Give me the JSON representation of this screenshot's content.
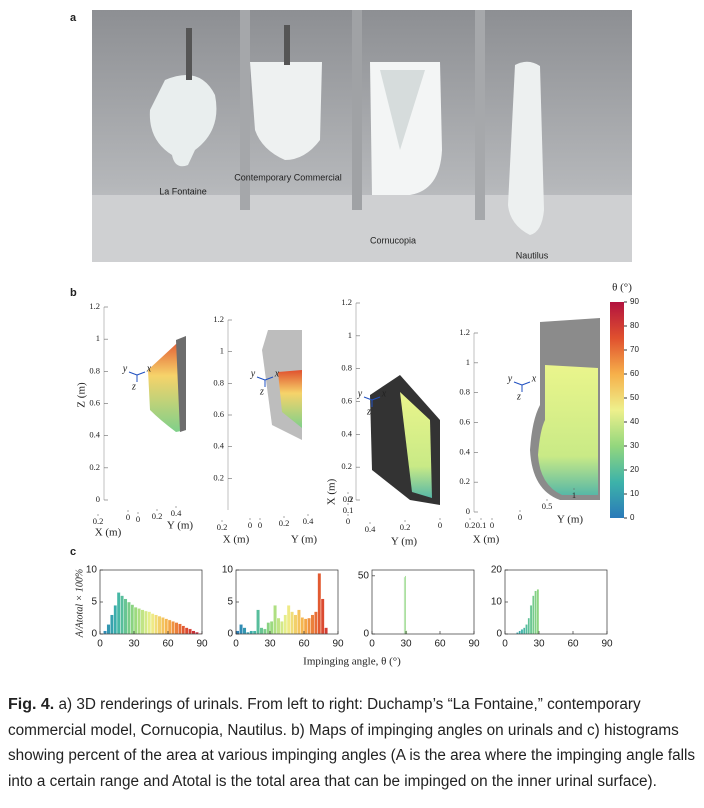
{
  "figure": {
    "panel_a": {
      "label": "a",
      "labels": [
        "La Fontaine",
        "Contemporary Commercial",
        "Cornucopia",
        "Nautilus"
      ]
    },
    "panel_b": {
      "label": "b",
      "axis_labels": {
        "x": "X (m)",
        "y": "Y (m)",
        "z": "Z (m)"
      },
      "frame_labels": [
        "y",
        "x",
        "z"
      ],
      "plots": [
        {
          "zlim": [
            0,
            1.2
          ],
          "zticks": [
            0,
            0.2,
            0.4,
            0.6,
            0.8,
            1,
            1.2
          ],
          "xlim": [
            0,
            0.2
          ],
          "xticks": [
            0,
            0.2
          ],
          "ylim": [
            0,
            0.4
          ],
          "yticks": [
            0,
            0.2,
            0.4
          ]
        },
        {
          "zlim": [
            0,
            1.2
          ],
          "zticks": [
            0.2,
            0.4,
            0.6,
            0.8,
            1,
            1.2
          ],
          "xlim": [
            0,
            0.2
          ],
          "xticks": [
            0,
            0.2
          ],
          "ylim": [
            0,
            0.4
          ],
          "yticks": [
            0,
            0.2,
            0.4
          ]
        },
        {
          "zlim": [
            0,
            1.2
          ],
          "zticks": [
            0,
            0.2,
            0.4,
            0.6,
            0.8,
            1,
            1.2
          ],
          "xlim": [
            0,
            0.2
          ],
          "xticks": [
            0,
            0.1,
            0.2
          ],
          "ylim": [
            0,
            0.4
          ],
          "yticks": [
            0,
            0.2,
            0.4
          ]
        },
        {
          "zlim": [
            0,
            1.2
          ],
          "zticks": [
            0,
            0.2,
            0.4,
            0.6,
            0.8,
            1,
            1.2
          ],
          "xlim": [
            0,
            0.2
          ],
          "xticks": [
            0,
            0.1,
            0.2
          ],
          "ylim": [
            0,
            1
          ],
          "yticks": [
            0,
            0.5,
            1
          ]
        }
      ],
      "colorbar": {
        "title": "θ (°)",
        "lim": [
          0,
          90
        ],
        "ticks": [
          0,
          10,
          20,
          30,
          40,
          50,
          60,
          70,
          80,
          90
        ],
        "colors": [
          "#2a7ab9",
          "#3db3a9",
          "#93d77d",
          "#eef08c",
          "#f6b04a",
          "#e0502e",
          "#b2123f"
        ]
      }
    },
    "panel_c": {
      "label": "c",
      "type": "histogram",
      "ylabel": "A/Atotal × 100%",
      "xlabel": "Impinging angle, θ (°)",
      "xlim": [
        0,
        90
      ],
      "xticks": [
        0,
        30,
        60,
        90
      ],
      "histograms": [
        {
          "ylim": [
            0,
            10
          ],
          "yticks": [
            0,
            5,
            10
          ],
          "bins": [
            0,
            3,
            6,
            9,
            12,
            15,
            18,
            21,
            24,
            27,
            30,
            33,
            36,
            39,
            42,
            45,
            48,
            51,
            54,
            57,
            60,
            63,
            66,
            69,
            72,
            75,
            78,
            81,
            84,
            87,
            90
          ],
          "counts": [
            0,
            0.5,
            1.5,
            3,
            4.5,
            6.5,
            6,
            5.5,
            5,
            4.6,
            4.2,
            4,
            3.8,
            3.6,
            3.5,
            3.2,
            3,
            2.8,
            2.6,
            2.4,
            2.2,
            2,
            1.8,
            1.6,
            1.3,
            1,
            0.8,
            0.5,
            0.3,
            0.1
          ]
        },
        {
          "ylim": [
            0,
            10
          ],
          "yticks": [
            0,
            5,
            10
          ],
          "bins": [
            0,
            3,
            6,
            9,
            12,
            15,
            18,
            21,
            24,
            27,
            30,
            33,
            36,
            39,
            42,
            45,
            48,
            51,
            54,
            57,
            60,
            63,
            66,
            69,
            72,
            75,
            78,
            81,
            84,
            87,
            90
          ],
          "counts": [
            0.5,
            1.5,
            1,
            0.3,
            0.5,
            0.5,
            3.8,
            1,
            0.8,
            1.8,
            2,
            4.5,
            2.5,
            2,
            3,
            4.5,
            3.5,
            3,
            3.8,
            2.6,
            2.4,
            2.5,
            3,
            3.5,
            9.5,
            5.5,
            1,
            0,
            0,
            0
          ]
        },
        {
          "ylim": [
            0,
            55
          ],
          "yticks": [
            0,
            50
          ],
          "bins": [
            28,
            29,
            30,
            31
          ],
          "counts": [
            49,
            50,
            3
          ]
        },
        {
          "ylim": [
            0,
            20
          ],
          "yticks": [
            0,
            10,
            20
          ],
          "bins": [
            10,
            12,
            14,
            16,
            18,
            20,
            22,
            24,
            26,
            28,
            30
          ],
          "counts": [
            0.5,
            1,
            1.5,
            2,
            3,
            5,
            9,
            12,
            13.5,
            14
          ]
        }
      ]
    },
    "caption": {
      "label": "Fig. 4.",
      "text": "a) 3D renderings of urinals. From left to right: Duchamp’s “La Fontaine,” contemporary commercial model, Cornucopia, Nautilus. b) Maps of impinging angles on urinals and c) histograms showing percent of the area at various impinging angles (A is the area where the impinging angle falls into a certain range and Atotal is the total area that can be impinged on the inner urinal surface)."
    }
  }
}
